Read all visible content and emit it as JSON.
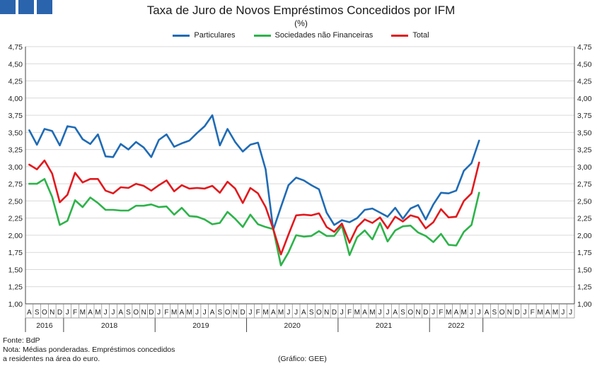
{
  "header": {
    "title": "Taxa de Juro de Novos Empréstimos Concedidos por IFM",
    "subtitle": "(%)",
    "logo_color": "#2a64ad"
  },
  "footer": {
    "source": "Fonte: BdP",
    "note_line1": "Nota: Médias ponderadas. Empréstimos concedidos",
    "note_line2": "a residentes na área do euro.",
    "credit": "(Gráfico: GEE)"
  },
  "chart_data": {
    "type": "line",
    "title": "Taxa de Juro de Novos Empréstimos Concedidos por IFM",
    "subtitle": "(%)",
    "ylim": [
      1.0,
      4.75
    ],
    "yticks": [
      "1,00",
      "1,25",
      "1,50",
      "1,75",
      "2,00",
      "2,25",
      "2,50",
      "2,75",
      "3,00",
      "3,25",
      "3,50",
      "3,75",
      "4,00",
      "4,25",
      "4,50",
      "4,75"
    ],
    "grid": true,
    "legend": "top-center",
    "x_months": [
      "A",
      "S",
      "O",
      "N",
      "D",
      "J",
      "F",
      "M",
      "A",
      "M",
      "J",
      "J",
      "A",
      "S",
      "O",
      "N",
      "D",
      "J",
      "F",
      "M",
      "A",
      "M",
      "J",
      "J",
      "A",
      "S",
      "O",
      "N",
      "D",
      "J",
      "F",
      "M",
      "A",
      "M",
      "J",
      "J",
      "A",
      "S",
      "O",
      "N",
      "D",
      "J",
      "F",
      "M",
      "A",
      "M",
      "J",
      "J",
      "A",
      "S",
      "O",
      "N",
      "D",
      "J",
      "F",
      "M",
      "A",
      "M",
      "J",
      "J",
      "A",
      "S",
      "O",
      "N",
      "D",
      "J",
      "F",
      "M",
      "A",
      "M",
      "J",
      "J"
    ],
    "year_groups": [
      {
        "label": "2016",
        "start": 0,
        "count": 5
      },
      {
        "label": "2018",
        "start": 5,
        "count": 12
      },
      {
        "label": "2019",
        "start": 17,
        "count": 12
      },
      {
        "label": "2020",
        "start": 29,
        "count": 12
      },
      {
        "label": "2021",
        "start": 41,
        "count": 12
      },
      {
        "label": "2022",
        "start": 53,
        "count": 7
      }
    ],
    "series": [
      {
        "name": "Particulares",
        "color": "#1f6bb5",
        "values": [
          3.53,
          3.32,
          3.55,
          3.52,
          3.31,
          3.59,
          3.57,
          3.4,
          3.33,
          3.47,
          3.15,
          3.14,
          3.33,
          3.25,
          3.36,
          3.28,
          3.14,
          3.39,
          3.47,
          3.29,
          3.34,
          3.38,
          3.49,
          3.59,
          3.75,
          3.31,
          3.55,
          3.36,
          3.22,
          3.32,
          3.35,
          2.96,
          2.08,
          2.41,
          2.73,
          2.84,
          2.8,
          2.73,
          2.67,
          2.33,
          2.15,
          2.22,
          2.19,
          2.25,
          2.37,
          2.39,
          2.33,
          2.27,
          2.4,
          2.24,
          2.39,
          2.44,
          2.23,
          2.45,
          2.62,
          2.61,
          2.65,
          2.94,
          3.05,
          3.38
        ]
      },
      {
        "name": "Sociedades não Financeiras",
        "color": "#2db34a",
        "values": [
          2.75,
          2.75,
          2.82,
          2.56,
          2.15,
          2.21,
          2.51,
          2.41,
          2.55,
          2.47,
          2.37,
          2.37,
          2.36,
          2.36,
          2.43,
          2.43,
          2.45,
          2.41,
          2.42,
          2.3,
          2.4,
          2.28,
          2.27,
          2.23,
          2.16,
          2.18,
          2.34,
          2.24,
          2.12,
          2.3,
          2.16,
          2.12,
          2.09,
          1.56,
          1.75,
          2.0,
          1.98,
          1.99,
          2.06,
          1.99,
          1.99,
          2.14,
          1.71,
          1.97,
          2.07,
          1.94,
          2.18,
          1.91,
          2.07,
          2.13,
          2.14,
          2.04,
          1.99,
          1.9,
          2.02,
          1.86,
          1.85,
          2.05,
          2.15,
          2.62
        ]
      },
      {
        "name": "Total",
        "color": "#e2191d",
        "values": [
          3.03,
          2.96,
          3.09,
          2.9,
          2.48,
          2.59,
          2.91,
          2.77,
          2.82,
          2.82,
          2.65,
          2.61,
          2.7,
          2.69,
          2.75,
          2.72,
          2.65,
          2.73,
          2.8,
          2.64,
          2.73,
          2.68,
          2.69,
          2.68,
          2.72,
          2.62,
          2.78,
          2.68,
          2.47,
          2.69,
          2.61,
          2.41,
          2.09,
          1.72,
          2.01,
          2.29,
          2.3,
          2.29,
          2.32,
          2.12,
          2.05,
          2.17,
          1.89,
          2.12,
          2.23,
          2.18,
          2.26,
          2.1,
          2.27,
          2.2,
          2.29,
          2.26,
          2.1,
          2.19,
          2.38,
          2.26,
          2.27,
          2.5,
          2.61,
          3.06
        ]
      }
    ]
  }
}
